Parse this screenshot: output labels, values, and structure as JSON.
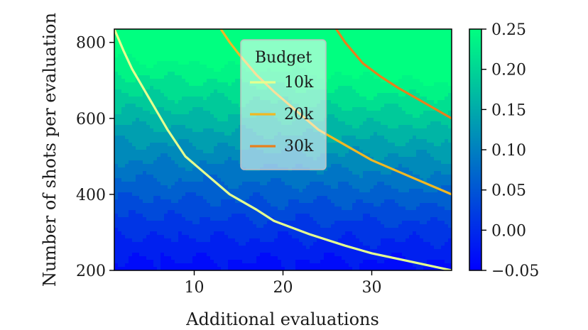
{
  "chart_data": {
    "type": "heatmap",
    "xlabel": "Additional evaluations",
    "ylabel": "Number of shots per evaluation",
    "xlim": [
      1,
      39
    ],
    "ylim": [
      200,
      835
    ],
    "x_ticks": [
      10,
      20,
      30
    ],
    "x_tick_labels": [
      "10",
      "20",
      "30"
    ],
    "y_ticks": [
      200,
      400,
      600,
      800
    ],
    "y_tick_labels": [
      "200",
      "400",
      "600",
      "800"
    ],
    "colorbar": {
      "range": [
        -0.05,
        0.25
      ],
      "ticks": [
        -0.05,
        0.0,
        0.05,
        0.1,
        0.15,
        0.2,
        0.25
      ],
      "tick_labels": [
        "−0.05",
        "0.00",
        "0.05",
        "0.10",
        "0.15",
        "0.20",
        "0.25"
      ],
      "colormap": "winter",
      "color_low": "#0000ff",
      "color_high": "#00ff80"
    },
    "contour_levels": [
      -0.05,
      -0.025,
      0.0,
      0.025,
      0.05,
      0.075,
      0.1,
      0.125,
      0.15,
      0.175,
      0.2,
      0.225,
      0.25
    ],
    "surface_description": "value increases with shots per evaluation and slightly with additional evaluations",
    "legend": {
      "title": "Budget",
      "placement": "upper-center",
      "entries": [
        {
          "label": "10k",
          "color": "#e5ff8f"
        },
        {
          "label": "20k",
          "color": "#f0b823"
        },
        {
          "label": "30k",
          "color": "#e8801c"
        }
      ]
    },
    "series": [
      {
        "name": "10k",
        "color": "#e5ff8f",
        "points": [
          [
            1,
            835
          ],
          [
            2,
            780
          ],
          [
            3,
            730
          ],
          [
            4,
            690
          ],
          [
            5,
            650
          ],
          [
            6,
            610
          ],
          [
            7,
            570
          ],
          [
            9,
            500
          ],
          [
            11,
            460
          ],
          [
            14,
            400
          ],
          [
            17,
            360
          ],
          [
            19,
            330
          ],
          [
            23,
            295
          ],
          [
            27,
            265
          ],
          [
            30,
            245
          ],
          [
            34,
            225
          ],
          [
            39,
            200
          ]
        ]
      },
      {
        "name": "20k",
        "color": "#f0b823",
        "points": [
          [
            13,
            835
          ],
          [
            14,
            800
          ],
          [
            15,
            770
          ],
          [
            17,
            715
          ],
          [
            19,
            670
          ],
          [
            21,
            630
          ],
          [
            24,
            570
          ],
          [
            27,
            530
          ],
          [
            30,
            490
          ],
          [
            33,
            460
          ],
          [
            36,
            430
          ],
          [
            39,
            400
          ]
        ]
      },
      {
        "name": "30k",
        "color": "#e8801c",
        "points": [
          [
            26,
            835
          ],
          [
            27,
            800
          ],
          [
            29,
            745
          ],
          [
            31,
            710
          ],
          [
            33,
            680
          ],
          [
            36,
            640
          ],
          [
            39,
            600
          ]
        ]
      }
    ]
  }
}
